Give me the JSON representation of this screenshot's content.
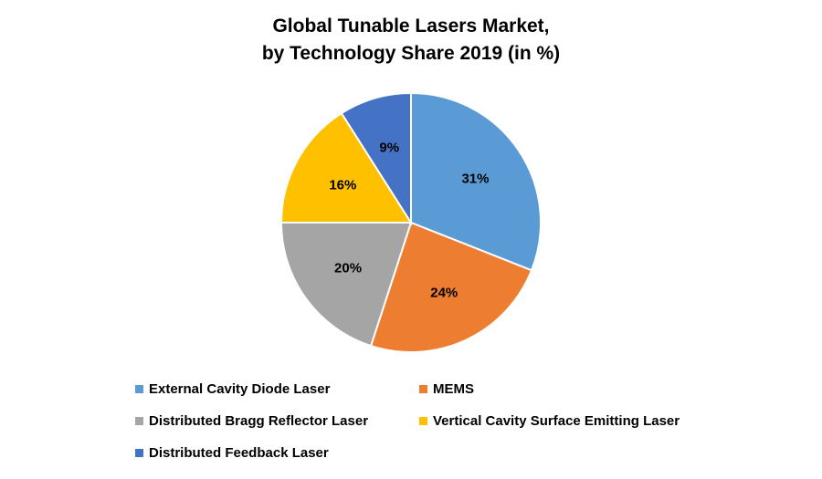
{
  "chart_data": {
    "type": "pie",
    "title": [
      "Global Tunable Lasers Market,",
      "by Technology Share 2019 (in %)"
    ],
    "slices": [
      {
        "label": "External Cavity Diode Laser",
        "value": 31,
        "display": "31%",
        "color": "#5B9BD5"
      },
      {
        "label": "MEMS",
        "value": 24,
        "display": "24%",
        "color": "#ED7D31"
      },
      {
        "label": "Distributed Bragg Reflector Laser",
        "value": 20,
        "display": "20%",
        "color": "#A5A5A5"
      },
      {
        "label": "Vertical Cavity Surface Emitting Laser",
        "value": 16,
        "display": "16%",
        "color": "#FFC000"
      },
      {
        "label": "Distributed Feedback Laser",
        "value": 9,
        "display": "9%",
        "color": "#4472C4"
      }
    ],
    "legend_position": "bottom"
  }
}
